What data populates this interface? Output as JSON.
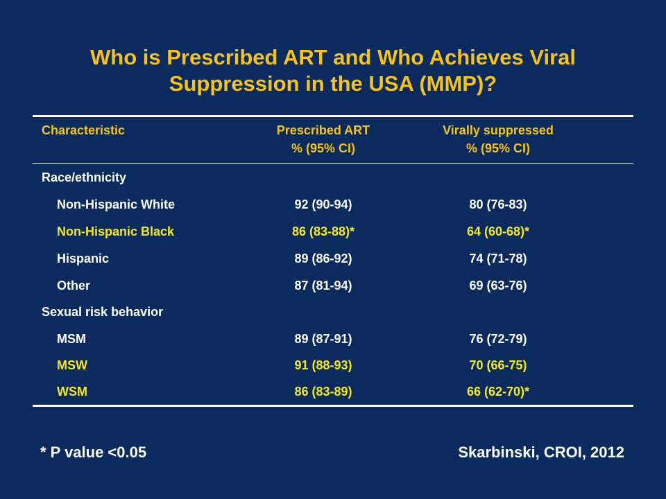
{
  "title": "Who is Prescribed ART and Who Achieves Viral Suppression in the USA (MMP)?",
  "table": {
    "headers": {
      "characteristic": "Characteristic",
      "art_line1": "Prescribed ART",
      "art_line2": "% (95% CI)",
      "vs_line1": "Virally suppressed",
      "vs_line2": "% (95% CI)"
    },
    "rows": [
      {
        "label": "Race/ethnicity",
        "art": "",
        "vs": ""
      },
      {
        "label": "Non-Hispanic White",
        "art": "92 (90-94)",
        "vs": "80 (76-83)"
      },
      {
        "label": "Non-Hispanic Black",
        "art": "86 (83-88)*",
        "vs": "64 (60-68)*"
      },
      {
        "label": "Hispanic",
        "art": "89 (86-92)",
        "vs": "74 (71-78)"
      },
      {
        "label": "Other",
        "art": "87 (81-94)",
        "vs": "69 (63-76)"
      },
      {
        "label": "Sexual risk behavior",
        "art": "",
        "vs": ""
      },
      {
        "label": "MSM",
        "art": "89 (87-91)",
        "vs": "76 (72-79)"
      },
      {
        "label": "MSW",
        "art": "91 (88-93)",
        "vs": "70 (66-75)"
      },
      {
        "label": "WSM",
        "art": "86 (83-89)",
        "vs": "66 (62-70)*"
      }
    ]
  },
  "footnote": "* P value <0.05",
  "citation": "Skarbinski, CROI, 2012",
  "colors": {
    "background": "#0b2a5e",
    "title": "#f7c318",
    "highlight": "#f5ea22",
    "text": "#ffffff"
  }
}
